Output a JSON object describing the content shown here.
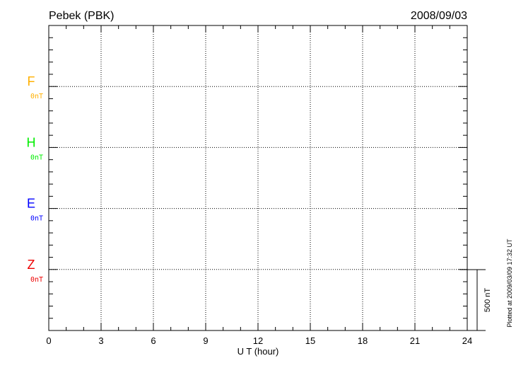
{
  "header": {
    "station": "Pebek (PBK)",
    "date": "2008/09/03"
  },
  "footer": {
    "plotted_at": "Plotted at 2009/03/09 17:32 UT"
  },
  "chart_data": {
    "type": "line",
    "xlabel": "U T (hour)",
    "xlim": [
      0,
      24
    ],
    "xticks": [
      "0",
      "3",
      "6",
      "9",
      "12",
      "15",
      "18",
      "21",
      "24"
    ],
    "grid": true,
    "traces": [
      {
        "name": "F",
        "baseline_label": "0nT",
        "color": "#ffb000"
      },
      {
        "name": "H",
        "baseline_label": "0nT",
        "color": "#00ee00"
      },
      {
        "name": "E",
        "baseline_label": "0nT",
        "color": "#0000ff"
      },
      {
        "name": "Z",
        "baseline_label": "0nT",
        "color": "#ee0000"
      }
    ],
    "series": [],
    "scale_bar": {
      "label": "500 nT",
      "value": 500
    }
  }
}
